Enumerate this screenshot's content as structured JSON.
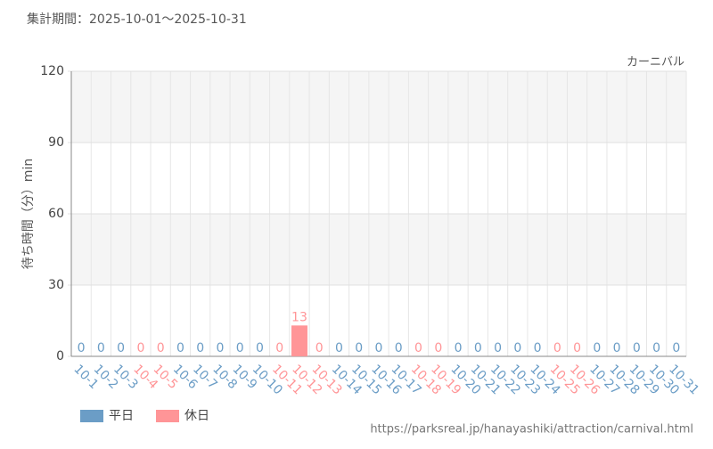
{
  "chart_data": {
    "type": "bar",
    "title": "集計期間：2025-10-01～2025-10-31",
    "subtitle": "カーニバル",
    "ylabel": "待ち時間（分）min",
    "source": "https://parksreal.jp/hanayashiki/attraction/carnival.html",
    "categories": [
      "10-1",
      "10-2",
      "10-3",
      "10-4",
      "10-5",
      "10-6",
      "10-7",
      "10-8",
      "10-9",
      "10-10",
      "10-11",
      "10-12",
      "10-13",
      "10-14",
      "10-15",
      "10-16",
      "10-17",
      "10-18",
      "10-19",
      "10-20",
      "10-21",
      "10-22",
      "10-23",
      "10-24",
      "10-25",
      "10-26",
      "10-27",
      "10-28",
      "10-29",
      "10-30",
      "10-31"
    ],
    "series": [
      {
        "name": "平日",
        "color": "#6b9dc6",
        "values": [
          0,
          0,
          0,
          null,
          null,
          0,
          0,
          0,
          0,
          0,
          null,
          null,
          null,
          0,
          0,
          0,
          0,
          null,
          null,
          0,
          0,
          0,
          0,
          0,
          null,
          null,
          0,
          0,
          0,
          0,
          0
        ]
      },
      {
        "name": "休日",
        "color": "#ff9597",
        "values": [
          null,
          null,
          null,
          0,
          0,
          null,
          null,
          null,
          null,
          null,
          0,
          13,
          0,
          null,
          null,
          null,
          null,
          0,
          0,
          null,
          null,
          null,
          null,
          null,
          0,
          0,
          null,
          null,
          null,
          null,
          null
        ]
      }
    ],
    "ylim": [
      0,
      120
    ],
    "yticks": [
      0,
      30,
      60,
      90,
      120
    ],
    "grid": true,
    "legend": "bottom-left"
  }
}
